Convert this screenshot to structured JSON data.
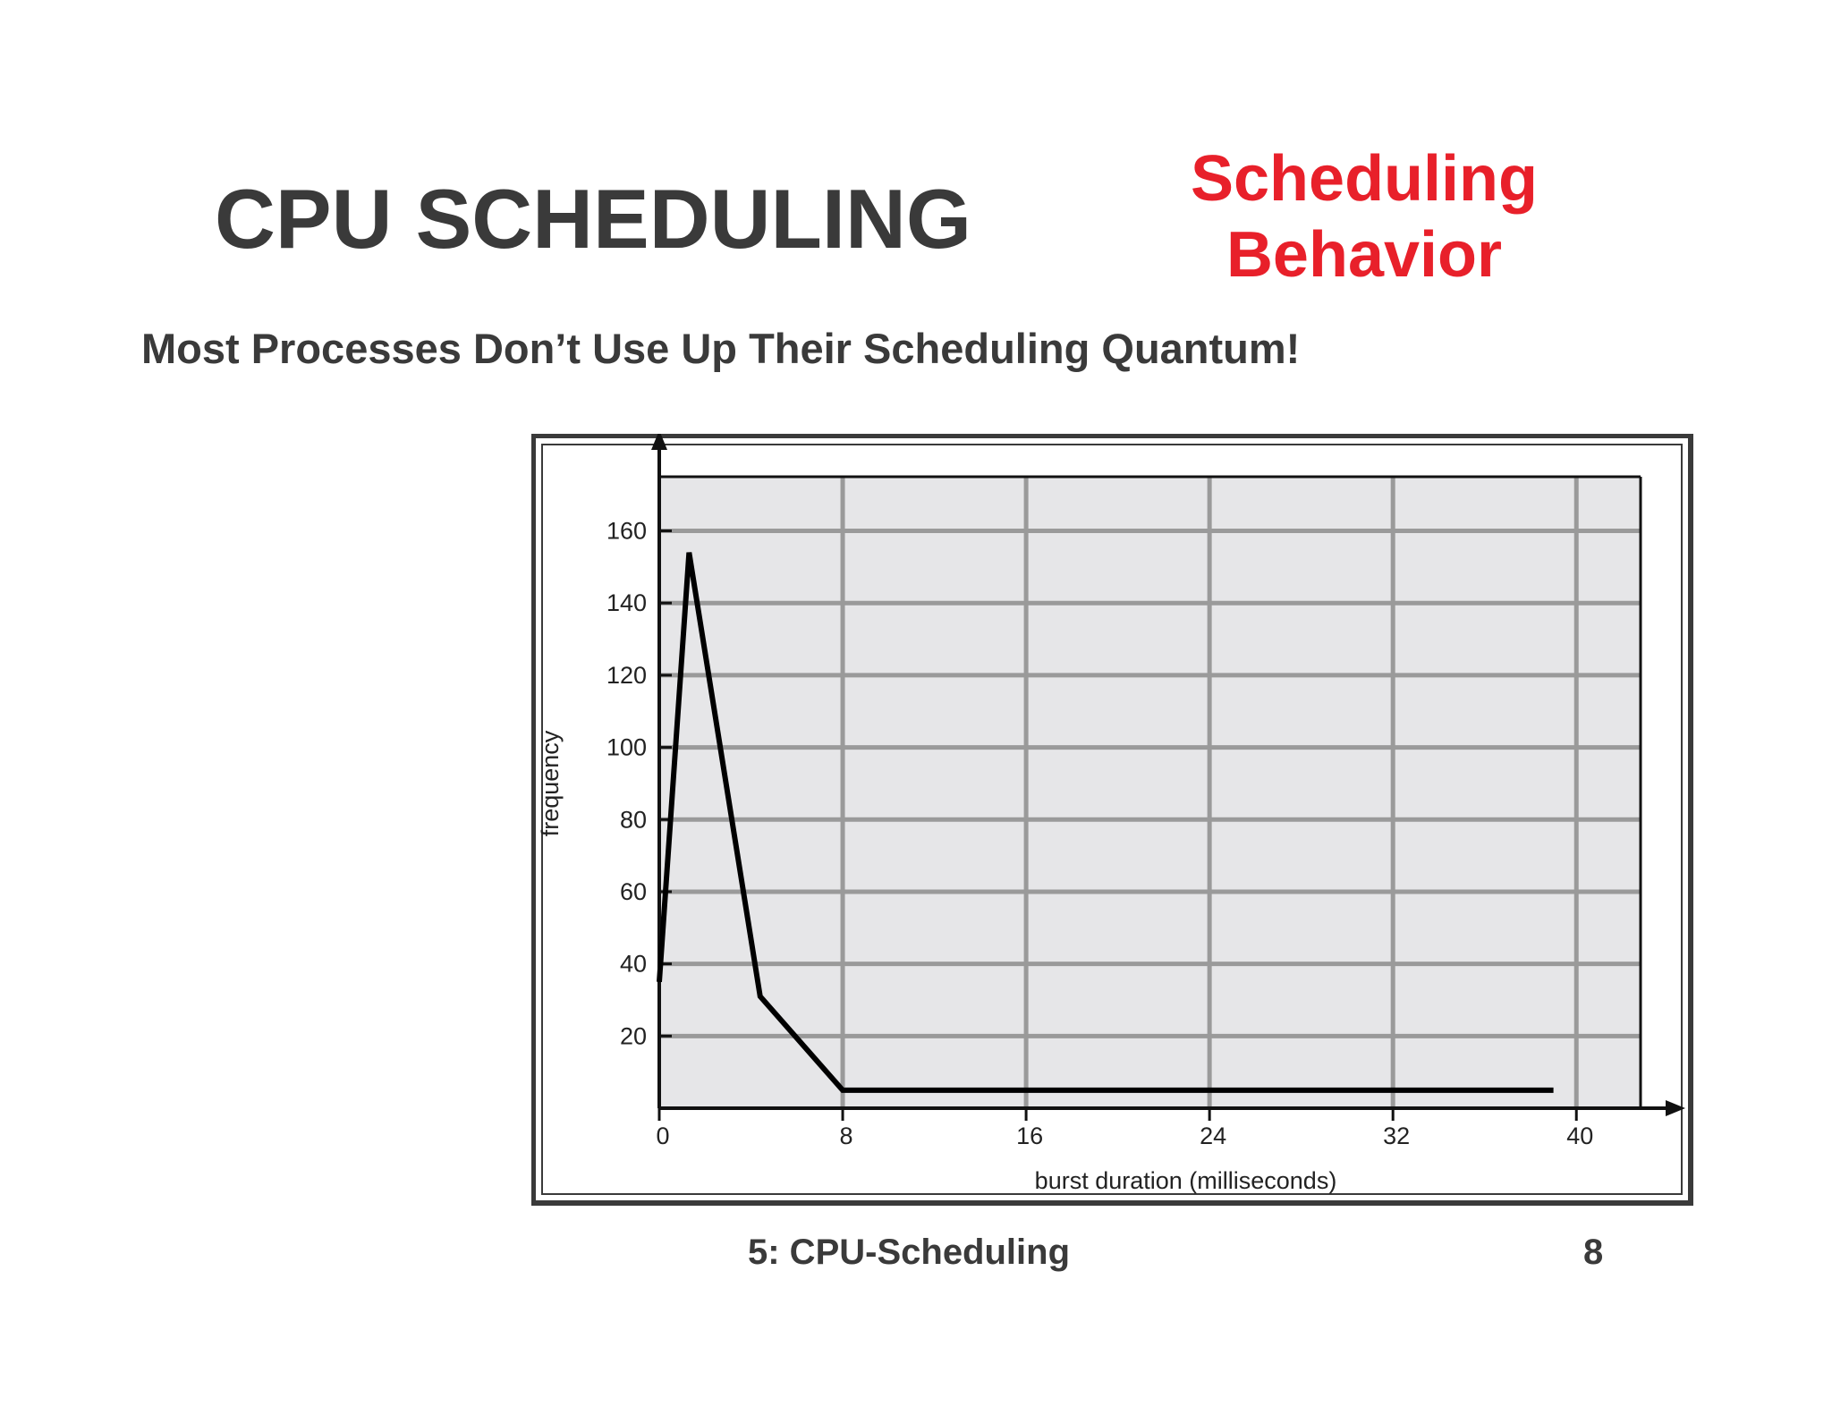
{
  "slide": {
    "title": "CPU SCHEDULING",
    "section_title": [
      "Scheduling",
      "Behavior"
    ],
    "subtitle": "Most Processes Don’t Use Up Their Scheduling Quantum!",
    "footer_label": "5: CPU-Scheduling",
    "page_number": "8"
  },
  "colors": {
    "title": "#3a3a3a",
    "section_title": "#e8202a",
    "plot_background": "#e6e6e8",
    "grid": "#9a9a9a",
    "line": "#000000"
  },
  "chart_data": {
    "type": "line",
    "xlabel": "burst duration (milliseconds)",
    "ylabel": "frequency",
    "xticks": [
      0,
      8,
      16,
      24,
      32,
      40
    ],
    "yticks": [
      20,
      40,
      60,
      80,
      100,
      120,
      140,
      160
    ],
    "xlim": [
      0,
      42.8
    ],
    "ylim": [
      0,
      175
    ],
    "grid": true,
    "series": [
      {
        "x": [
          0,
          1.3,
          4.4,
          8,
          39
        ],
        "y": [
          35,
          154,
          31,
          5,
          5
        ]
      }
    ]
  }
}
